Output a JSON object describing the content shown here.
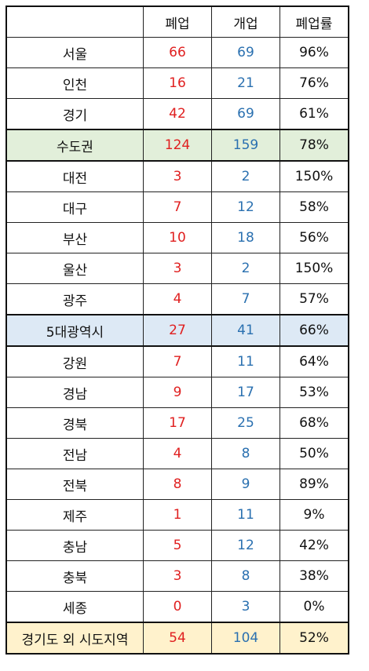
{
  "header": {
    "region": "",
    "closures": "폐업",
    "openings": "개업",
    "closure_rate": "폐업률"
  },
  "rows": [
    {
      "region": "서울",
      "closures": "66",
      "openings": "69",
      "closure_rate": "96%"
    },
    {
      "region": "인천",
      "closures": "16",
      "openings": "21",
      "closure_rate": "76%"
    },
    {
      "region": "경기",
      "closures": "42",
      "openings": "69",
      "closure_rate": "61%"
    },
    {
      "region": "수도권",
      "closures": "124",
      "openings": "159",
      "closure_rate": "78%",
      "subtotal": true
    },
    {
      "region": "대전",
      "closures": "3",
      "openings": "2",
      "closure_rate": "150%"
    },
    {
      "region": "대구",
      "closures": "7",
      "openings": "12",
      "closure_rate": "58%"
    },
    {
      "region": "부산",
      "closures": "10",
      "openings": "18",
      "closure_rate": "56%"
    },
    {
      "region": "울산",
      "closures": "3",
      "openings": "2",
      "closure_rate": "150%"
    },
    {
      "region": "광주",
      "closures": "4",
      "openings": "7",
      "closure_rate": "57%"
    },
    {
      "region": "5대광역시",
      "closures": "27",
      "openings": "41",
      "closure_rate": "66%",
      "subtotal": true
    },
    {
      "region": "강원",
      "closures": "7",
      "openings": "11",
      "closure_rate": "64%"
    },
    {
      "region": "경남",
      "closures": "9",
      "openings": "17",
      "closure_rate": "53%"
    },
    {
      "region": "경북",
      "closures": "17",
      "openings": "25",
      "closure_rate": "68%"
    },
    {
      "region": "전남",
      "closures": "4",
      "openings": "8",
      "closure_rate": "50%"
    },
    {
      "region": "전북",
      "closures": "8",
      "openings": "9",
      "closure_rate": "89%"
    },
    {
      "region": "제주",
      "closures": "1",
      "openings": "11",
      "closure_rate": "9%"
    },
    {
      "region": "충남",
      "closures": "5",
      "openings": "12",
      "closure_rate": "42%"
    },
    {
      "region": "충북",
      "closures": "3",
      "openings": "8",
      "closure_rate": "38%"
    },
    {
      "region": "세종",
      "closures": "0",
      "openings": "3",
      "closure_rate": "0%"
    },
    {
      "region": "경기도 외 시도지역",
      "closures": "54",
      "openings": "104",
      "closure_rate": "52%",
      "subtotal": true
    }
  ],
  "colors": {
    "closures_text": "#e02020",
    "openings_text": "#2a70b0",
    "metro_subtotal_bg": "#e2efda",
    "five_cities_subtotal_bg": "#dde9f5",
    "others_subtotal_bg": "#fff2cc",
    "border": "#222222"
  }
}
